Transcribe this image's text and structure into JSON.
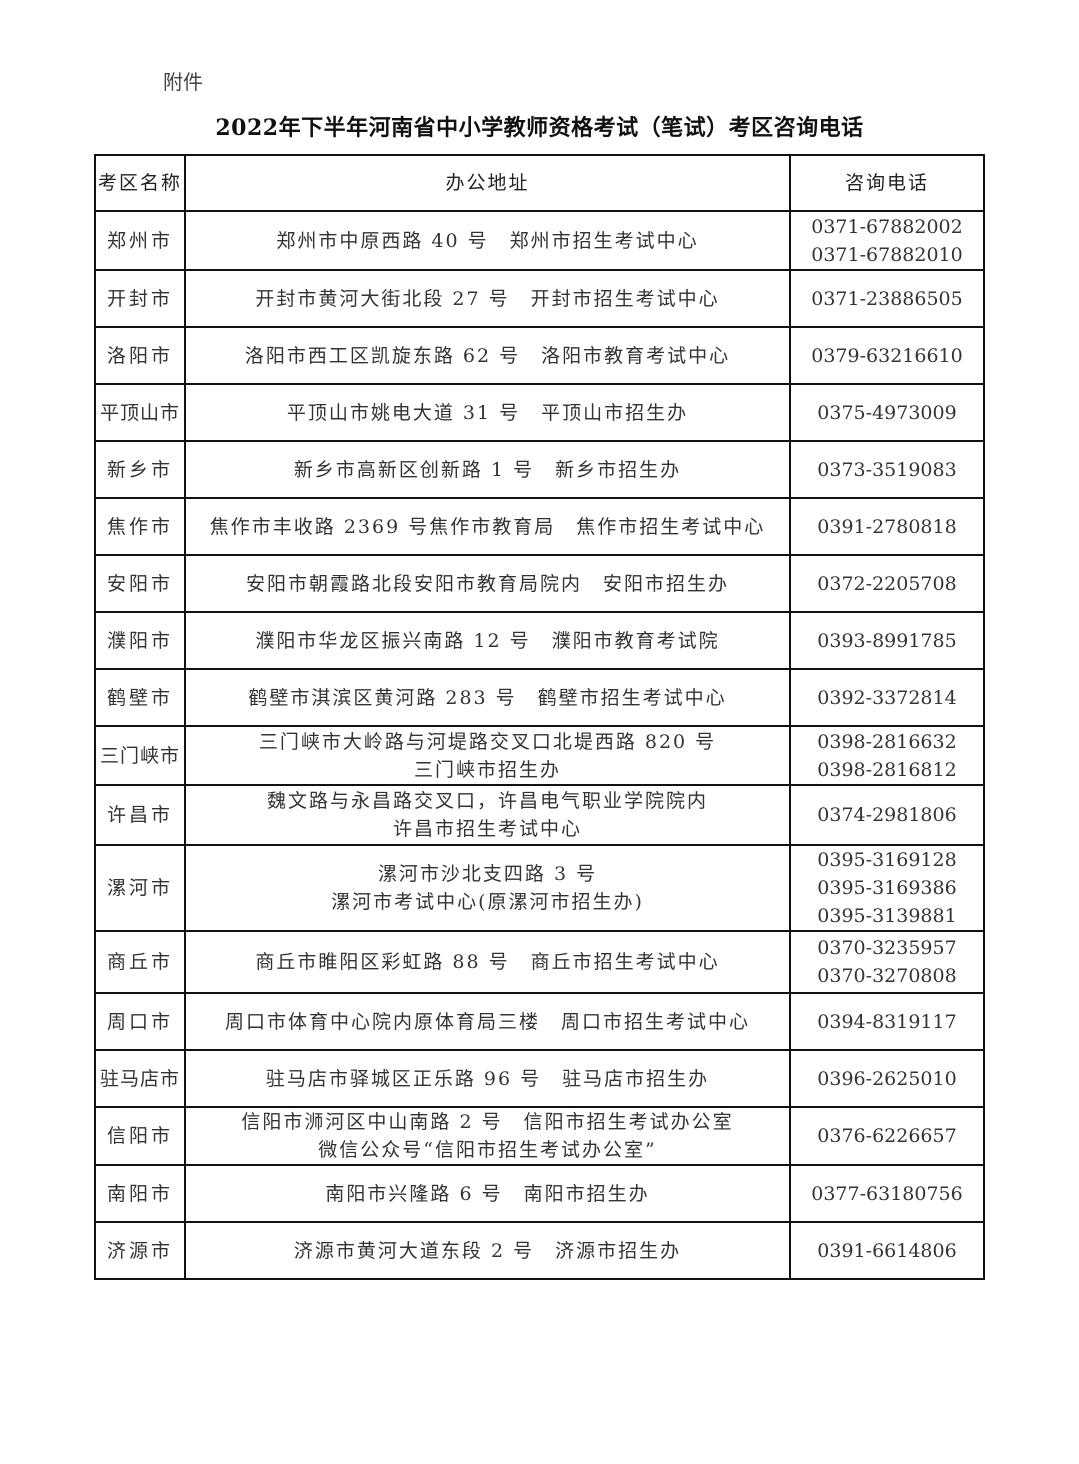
{
  "attachment_label": "附件",
  "title": "2022年下半年河南省中小学教师资格考试（笔试）考区咨询电话",
  "table": {
    "headers": [
      "考区名称",
      "办公地址",
      "咨询电话"
    ],
    "rows": [
      {
        "name": "郑州市",
        "address": [
          "郑州市中原西路 40 号　郑州市招生考试中心"
        ],
        "phones": [
          "0371-67882002",
          "0371-67882010"
        ]
      },
      {
        "name": "开封市",
        "address": [
          "开封市黄河大街北段 27 号　开封市招生考试中心"
        ],
        "phones": [
          "0371-23886505"
        ]
      },
      {
        "name": "洛阳市",
        "address": [
          "洛阳市西工区凯旋东路 62 号　洛阳市教育考试中心"
        ],
        "phones": [
          "0379-63216610"
        ]
      },
      {
        "name": "平顶山市",
        "address": [
          "平顶山市姚电大道 31 号　平顶山市招生办"
        ],
        "phones": [
          "0375-4973009"
        ]
      },
      {
        "name": "新乡市",
        "address": [
          "新乡市高新区创新路 1 号　新乡市招生办"
        ],
        "phones": [
          "0373-3519083"
        ]
      },
      {
        "name": "焦作市",
        "address": [
          "焦作市丰收路 2369 号焦作市教育局　焦作市招生考试中心"
        ],
        "phones": [
          "0391-2780818"
        ]
      },
      {
        "name": "安阳市",
        "address": [
          "安阳市朝霞路北段安阳市教育局院内　安阳市招生办"
        ],
        "phones": [
          "0372-2205708"
        ]
      },
      {
        "name": "濮阳市",
        "address": [
          "濮阳市华龙区振兴南路 12 号　濮阳市教育考试院"
        ],
        "phones": [
          "0393-8991785"
        ]
      },
      {
        "name": "鹤壁市",
        "address": [
          "鹤壁市淇滨区黄河路 283 号　鹤壁市招生考试中心"
        ],
        "phones": [
          "0392-3372814"
        ]
      },
      {
        "name": "三门峡市",
        "address": [
          "三门峡市大岭路与河堤路交叉口北堤西路 820 号",
          "三门峡市招生办"
        ],
        "phones": [
          "0398-2816632",
          "0398-2816812"
        ]
      },
      {
        "name": "许昌市",
        "address": [
          "魏文路与永昌路交叉口，许昌电气职业学院院内",
          "许昌市招生考试中心"
        ],
        "phones": [
          "0374-2981806"
        ]
      },
      {
        "name": "漯河市",
        "address": [
          "漯河市沙北支四路 3 号",
          "漯河市考试中心(原漯河市招生办)"
        ],
        "phones": [
          "0395-3169128",
          "0395-3169386",
          "0395-3139881"
        ]
      },
      {
        "name": "商丘市",
        "address": [
          "商丘市睢阳区彩虹路 88 号　商丘市招生考试中心"
        ],
        "phones": [
          "0370-3235957",
          "0370-3270808"
        ]
      },
      {
        "name": "周口市",
        "address": [
          "周口市体育中心院内原体育局三楼　周口市招生考试中心"
        ],
        "phones": [
          "0394-8319117"
        ]
      },
      {
        "name": "驻马店市",
        "address": [
          "驻马店市驿城区正乐路 96 号　驻马店市招生办"
        ],
        "phones": [
          "0396-2625010"
        ]
      },
      {
        "name": "信阳市",
        "address": [
          "信阳市浉河区中山南路 2 号　信阳市招生考试办公室",
          "微信公众号“信阳市招生考试办公室”"
        ],
        "phones": [
          "0376-6226657"
        ]
      },
      {
        "name": "南阳市",
        "address": [
          "南阳市兴隆路 6 号　南阳市招生办"
        ],
        "phones": [
          "0377-63180756"
        ]
      },
      {
        "name": "济源市",
        "address": [
          "济源市黄河大道东段 2 号　济源市招生办"
        ],
        "phones": [
          "0391-6614806"
        ]
      }
    ]
  }
}
